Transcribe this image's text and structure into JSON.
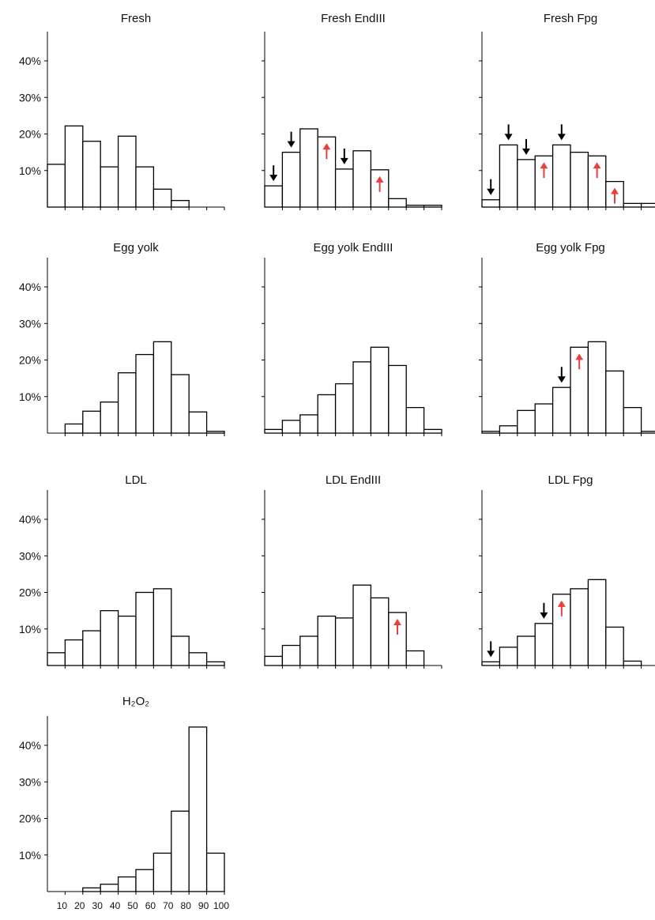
{
  "colors": {
    "bar_fill": "#ffffff",
    "bar_stroke": "#000000",
    "down_arrow": "#000000",
    "up_arrow": "#e84040"
  },
  "y_tick_labels": [
    "10%",
    "20%",
    "30%",
    "40%"
  ],
  "x_tick_labels": [
    "10",
    "20",
    "30",
    "40",
    "50",
    "60",
    "70",
    "80",
    "90",
    "100"
  ],
  "chart_data": [
    {
      "type": "bar",
      "title": "Fresh",
      "x": [
        0,
        10,
        20,
        30,
        40,
        50,
        60,
        70,
        80,
        90
      ],
      "values": [
        11.7,
        22.2,
        18,
        11,
        19.4,
        11,
        4.9,
        1.8,
        0,
        0
      ],
      "ylim": [
        0,
        48
      ],
      "show_y_labels": true,
      "show_x_labels": false,
      "arrows": []
    },
    {
      "type": "bar",
      "title": "Fresh EndIII",
      "x": [
        0,
        10,
        20,
        30,
        40,
        50,
        60,
        70,
        80,
        90
      ],
      "values": [
        5.8,
        15,
        21.4,
        19.2,
        10.4,
        15.4,
        10.2,
        2.3,
        0.5,
        0.5
      ],
      "ylim": [
        0,
        48
      ],
      "show_y_labels": false,
      "show_x_labels": false,
      "arrows": [
        {
          "bin": 0,
          "dir": "down"
        },
        {
          "bin": 1,
          "dir": "down"
        },
        {
          "bin": 3,
          "dir": "up"
        },
        {
          "bin": 4,
          "dir": "down"
        },
        {
          "bin": 6,
          "dir": "up"
        }
      ]
    },
    {
      "type": "bar",
      "title": "Fresh Fpg",
      "x": [
        0,
        10,
        20,
        30,
        40,
        50,
        60,
        70,
        80,
        90
      ],
      "values": [
        2,
        17,
        13,
        14,
        17,
        15,
        14,
        7,
        1,
        1
      ],
      "ylim": [
        0,
        48
      ],
      "show_y_labels": false,
      "show_x_labels": false,
      "arrows": [
        {
          "bin": 0,
          "dir": "down"
        },
        {
          "bin": 1,
          "dir": "down"
        },
        {
          "bin": 2,
          "dir": "down"
        },
        {
          "bin": 3,
          "dir": "up"
        },
        {
          "bin": 4,
          "dir": "down"
        },
        {
          "bin": 6,
          "dir": "up"
        },
        {
          "bin": 7,
          "dir": "up"
        }
      ]
    },
    {
      "type": "bar",
      "title": "Egg yolk",
      "x": [
        0,
        10,
        20,
        30,
        40,
        50,
        60,
        70,
        80,
        90
      ],
      "values": [
        0,
        2.5,
        6,
        8.5,
        16.5,
        21.5,
        25,
        16,
        5.8,
        0.5
      ],
      "ylim": [
        0,
        48
      ],
      "show_y_labels": true,
      "show_x_labels": false,
      "arrows": []
    },
    {
      "type": "bar",
      "title": "Egg yolk EndIII",
      "x": [
        0,
        10,
        20,
        30,
        40,
        50,
        60,
        70,
        80,
        90
      ],
      "values": [
        1,
        3.5,
        5,
        10.5,
        13.5,
        19.5,
        23.5,
        18.5,
        7,
        1
      ],
      "ylim": [
        0,
        48
      ],
      "show_y_labels": false,
      "show_x_labels": false,
      "arrows": []
    },
    {
      "type": "bar",
      "title": "Egg yolk Fpg",
      "x": [
        0,
        10,
        20,
        30,
        40,
        50,
        60,
        70,
        80,
        90
      ],
      "values": [
        0.5,
        2,
        6.2,
        8,
        12.5,
        23.5,
        25,
        17,
        7,
        0.5
      ],
      "ylim": [
        0,
        48
      ],
      "show_y_labels": false,
      "show_x_labels": false,
      "arrows": [
        {
          "bin": 4,
          "dir": "down"
        },
        {
          "bin": 5,
          "dir": "up"
        }
      ]
    },
    {
      "type": "bar",
      "title": "LDL",
      "x": [
        0,
        10,
        20,
        30,
        40,
        50,
        60,
        70,
        80,
        90
      ],
      "values": [
        3.5,
        7,
        9.5,
        15,
        13.5,
        20,
        21,
        8,
        3.5,
        1
      ],
      "ylim": [
        0,
        48
      ],
      "show_y_labels": true,
      "show_x_labels": false,
      "arrows": []
    },
    {
      "type": "bar",
      "title": "LDL EndIII",
      "x": [
        0,
        10,
        20,
        30,
        40,
        50,
        60,
        70,
        80,
        90
      ],
      "values": [
        2.5,
        5.5,
        8,
        13.5,
        13,
        22,
        18.5,
        14.5,
        4,
        0
      ],
      "ylim": [
        0,
        48
      ],
      "show_y_labels": false,
      "show_x_labels": false,
      "arrows": [
        {
          "bin": 7,
          "dir": "up"
        }
      ]
    },
    {
      "type": "bar",
      "title": "LDL Fpg",
      "x": [
        0,
        10,
        20,
        30,
        40,
        50,
        60,
        70,
        80,
        90
      ],
      "values": [
        1,
        5,
        8,
        11.5,
        19.5,
        21,
        23.5,
        10.5,
        1.2,
        0
      ],
      "ylim": [
        0,
        48
      ],
      "show_y_labels": false,
      "show_x_labels": false,
      "arrows": [
        {
          "bin": 0,
          "dir": "down"
        },
        {
          "bin": 3,
          "dir": "down"
        },
        {
          "bin": 4,
          "dir": "up"
        }
      ]
    },
    {
      "type": "bar",
      "title": "H₂O₂",
      "x": [
        0,
        10,
        20,
        30,
        40,
        50,
        60,
        70,
        80,
        90
      ],
      "values": [
        0,
        0,
        1,
        2,
        4,
        6,
        10.5,
        22,
        45,
        10.5
      ],
      "ylim": [
        0,
        48
      ],
      "show_y_labels": true,
      "show_x_labels": true,
      "arrows": []
    }
  ]
}
